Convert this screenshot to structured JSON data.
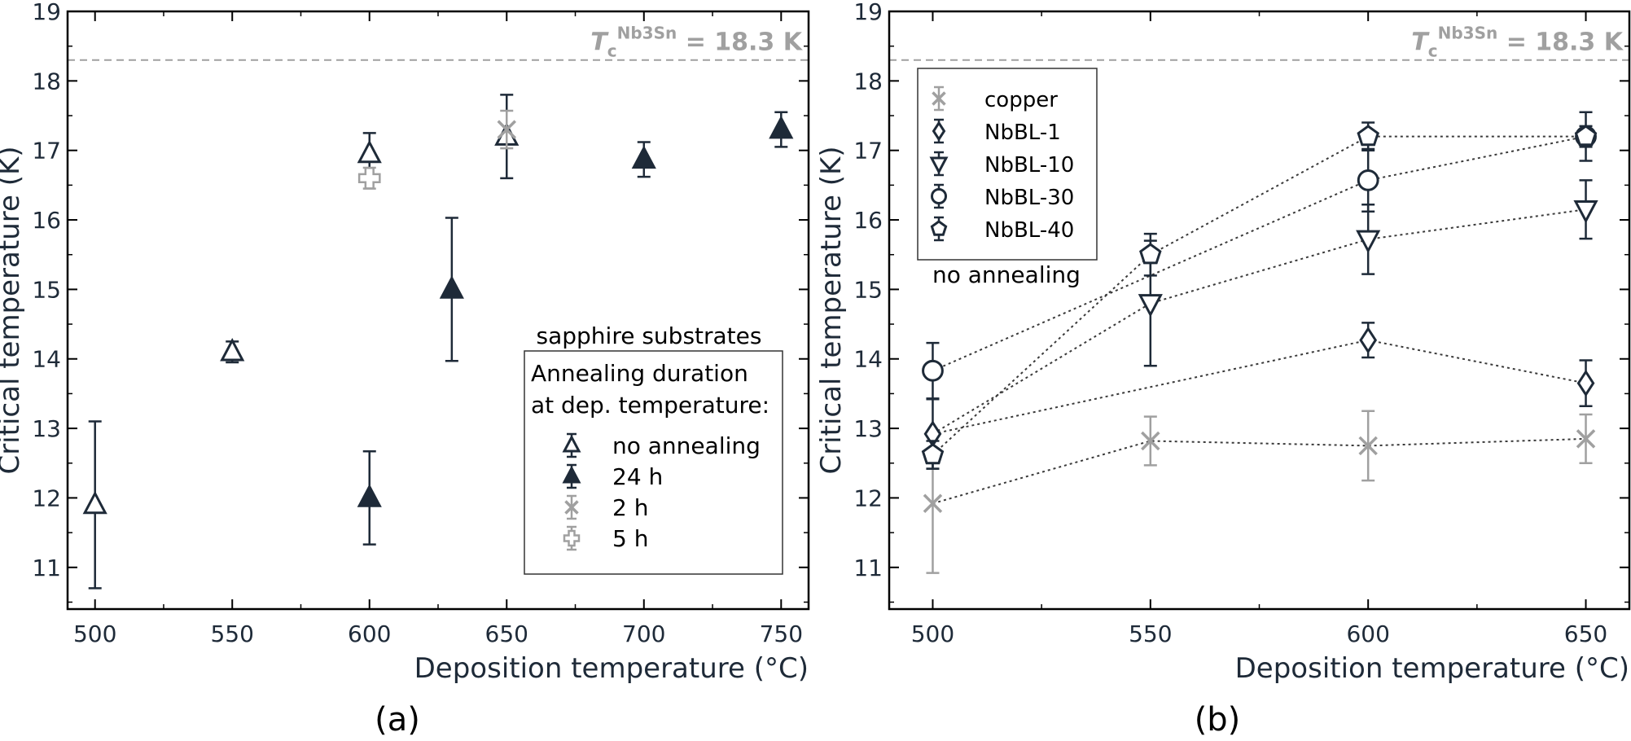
{
  "chart_data": [
    {
      "panel_label": "(a)",
      "type": "scatter",
      "xlabel": "Deposition temperature (°C)",
      "ylabel": "Critical temperature (K)",
      "xlim": [
        490,
        760
      ],
      "ylim": [
        10.4,
        19
      ],
      "xticks": [
        500,
        550,
        600,
        650,
        700,
        750
      ],
      "yticks": [
        11,
        12,
        13,
        14,
        15,
        16,
        17,
        18,
        19
      ],
      "reference_line": {
        "value": 18.3,
        "label_main": "T",
        "label_sub": "c",
        "label_sup": "Nb3Sn",
        "label_tail": " = 18.3 K",
        "color": "#a0a0a0"
      },
      "legend_title": "sapphire substrates",
      "legend_subtitle": [
        "Annealing duration",
        "at dep. temperature:"
      ],
      "legend_position": "lower-right",
      "grid": false,
      "series": [
        {
          "name": "no annealing",
          "marker": "triangle-open",
          "color": "#1e2a38",
          "points": [
            {
              "x": 500,
              "y": 11.9,
              "err": 1.2
            },
            {
              "x": 550,
              "y": 14.1,
              "err": 0.15
            },
            {
              "x": 600,
              "y": 16.95,
              "err": 0.3
            },
            {
              "x": 650,
              "y": 17.2,
              "err": 0.6
            }
          ]
        },
        {
          "name": "24 h",
          "marker": "triangle-filled",
          "color": "#1e2a38",
          "points": [
            {
              "x": 600,
              "y": 12.0,
              "err": 0.67
            },
            {
              "x": 630,
              "y": 15.0,
              "err": 1.03
            },
            {
              "x": 700,
              "y": 16.87,
              "err": 0.25
            },
            {
              "x": 750,
              "y": 17.3,
              "err": 0.25
            }
          ]
        },
        {
          "name": "2 h",
          "marker": "x-open",
          "color": "#a0a0a0",
          "points": [
            {
              "x": 650,
              "y": 17.3,
              "err": 0.27
            }
          ]
        },
        {
          "name": "5 h",
          "marker": "plus-open",
          "color": "#a0a0a0",
          "points": [
            {
              "x": 600,
              "y": 16.6,
              "err": 0.15
            }
          ]
        }
      ]
    },
    {
      "panel_label": "(b)",
      "type": "line",
      "xlabel": "Deposition temperature (°C)",
      "ylabel": "Critical temperature (K)",
      "xlim": [
        490,
        660
      ],
      "ylim": [
        10.4,
        19
      ],
      "xticks": [
        500,
        550,
        600,
        650
      ],
      "yticks": [
        11,
        12,
        13,
        14,
        15,
        16,
        17,
        18,
        19
      ],
      "reference_line": {
        "value": 18.3,
        "label_main": "T",
        "label_sub": "c",
        "label_sup": "Nb3Sn",
        "label_tail": " = 18.3 K",
        "color": "#a0a0a0"
      },
      "legend_position": "top-left",
      "legend_note": "no annealing",
      "grid": false,
      "series": [
        {
          "name": "copper",
          "marker": "x-open",
          "color": "#a0a0a0",
          "points": [
            {
              "x": 500,
              "y": 11.92,
              "err": 1.0
            },
            {
              "x": 550,
              "y": 12.82,
              "err": 0.35
            },
            {
              "x": 600,
              "y": 12.75,
              "err": 0.5
            },
            {
              "x": 650,
              "y": 12.85,
              "err": 0.35
            }
          ]
        },
        {
          "name": "NbBL-1",
          "marker": "diamond-open",
          "color": "#1e2a38",
          "points": [
            {
              "x": 500,
              "y": 12.92,
              "err": 0.5
            },
            {
              "x": 600,
              "y": 14.27,
              "err": 0.25
            },
            {
              "x": 650,
              "y": 13.65,
              "err": 0.33
            }
          ]
        },
        {
          "name": "NbBL-10",
          "marker": "triangle-down-open",
          "color": "#1e2a38",
          "points": [
            {
              "x": 550,
              "y": 14.8,
              "err": 0.9
            },
            {
              "x": 600,
              "y": 15.72,
              "err": 0.5
            },
            {
              "x": 650,
              "y": 16.15,
              "err": 0.42
            }
          ]
        },
        {
          "name": "NbBL-30",
          "marker": "circle-open",
          "color": "#1e2a38",
          "points": [
            {
              "x": 500,
              "y": 13.83,
              "err": 0.4
            },
            {
              "x": 600,
              "y": 16.57,
              "err": 0.45
            },
            {
              "x": 650,
              "y": 17.2,
              "err": 0.35
            }
          ]
        },
        {
          "name": "NbBL-40",
          "marker": "pentagon-open",
          "color": "#1e2a38",
          "points": [
            {
              "x": 500,
              "y": 12.62,
              "err": 0.2
            },
            {
              "x": 550,
              "y": 15.5,
              "err": 0.3
            },
            {
              "x": 600,
              "y": 17.2,
              "err": 0.2
            },
            {
              "x": 650,
              "y": 17.2,
              "err": 0.15
            }
          ]
        }
      ],
      "connectors": [
        {
          "color": "#3a3a3a",
          "points": [
            [
              500,
              11.92
            ],
            [
              550,
              12.82
            ],
            [
              600,
              12.75
            ],
            [
              650,
              12.85
            ]
          ]
        },
        {
          "color": "#3a3a3a",
          "points": [
            [
              500,
              12.92
            ],
            [
              600,
              14.27
            ],
            [
              650,
              13.65
            ]
          ]
        },
        {
          "color": "#3a3a3a",
          "points": [
            [
              500,
              12.92
            ],
            [
              550,
              14.8
            ],
            [
              600,
              15.72
            ],
            [
              650,
              16.15
            ]
          ]
        },
        {
          "color": "#3a3a3a",
          "points": [
            [
              500,
              13.83
            ],
            [
              600,
              16.57
            ],
            [
              650,
              17.2
            ]
          ]
        },
        {
          "color": "#3a3a3a",
          "points": [
            [
              500,
              12.62
            ],
            [
              550,
              15.5
            ],
            [
              600,
              17.2
            ],
            [
              650,
              17.2
            ]
          ]
        }
      ]
    }
  ]
}
